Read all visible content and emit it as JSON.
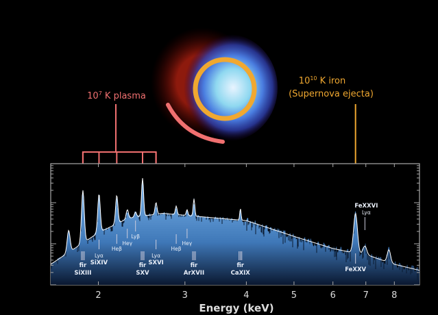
{
  "annotations": {
    "plasma_label_base": "10",
    "plasma_label_exp": "7",
    "plasma_label_rest": " K plasma",
    "iron_label_base": "10",
    "iron_label_exp": "10",
    "iron_label_rest": " K iron",
    "iron_label_line2": "(Supernova ejecta)",
    "colors": {
      "plasma": "#f07070",
      "iron": "#f0a830",
      "spectrum_fill": "#5fa0e0",
      "model_line": "#ffffff"
    }
  },
  "chart_data": {
    "type": "area",
    "title": "",
    "xlabel": "Energy (keV)",
    "ylabel": "",
    "x_scale": "log",
    "y_scale": "log",
    "xlim": [
      1.6,
      9.0
    ],
    "x_ticks": [
      "2",
      "3",
      "4",
      "5",
      "6",
      "7",
      "8"
    ],
    "grid": false,
    "continuum": {
      "energy_keV": [
        1.6,
        2.0,
        2.3,
        2.7,
        3.5,
        4.0,
        5.0,
        6.0,
        6.5,
        7.0,
        8.0,
        9.0
      ],
      "relative_intensity": [
        17,
        43,
        55,
        59,
        55,
        53,
        40,
        30,
        27,
        25,
        17,
        12
      ]
    },
    "lines": [
      {
        "energy_keV": 1.74,
        "peak": 45
      },
      {
        "energy_keV": 1.86,
        "peak": 78,
        "labels": [
          "fir",
          "SiXIII"
        ],
        "plasma_arrow": true
      },
      {
        "energy_keV": 2.006,
        "peak": 75,
        "labels": [
          "Lyα",
          "SiXIV"
        ],
        "plasma_arrow": true
      },
      {
        "energy_keV": 2.18,
        "peak": 74,
        "labels": [
          "Heβ"
        ],
        "plasma_arrow": true
      },
      {
        "energy_keV": 2.29,
        "peak": 62,
        "labels": [
          "Heγ"
        ]
      },
      {
        "energy_keV": 2.38,
        "peak": 60,
        "labels": [
          "Lyβ"
        ]
      },
      {
        "energy_keV": 2.46,
        "peak": 88,
        "labels": [
          "fir",
          "SXV"
        ],
        "plasma_arrow": true
      },
      {
        "energy_keV": 2.62,
        "peak": 68,
        "labels": [
          "Lyα",
          "SXVI"
        ],
        "plasma_arrow": true
      },
      {
        "energy_keV": 2.88,
        "peak": 65,
        "labels": [
          "Heβ"
        ]
      },
      {
        "energy_keV": 3.03,
        "peak": 62,
        "labels": [
          "Heγ"
        ]
      },
      {
        "energy_keV": 3.13,
        "peak": 71,
        "labels": [
          "fir",
          "ArXVII"
        ]
      },
      {
        "energy_keV": 3.89,
        "peak": 63,
        "labels": [
          "fir",
          "CaXIX"
        ]
      },
      {
        "energy_keV": 6.67,
        "peak": 59,
        "labels": [
          "FeXXV"
        ],
        "iron_arrow": true
      },
      {
        "energy_keV": 6.97,
        "peak": 32,
        "labels": [
          "FeXXVI",
          "Lyα"
        ]
      },
      {
        "energy_keV": 7.8,
        "peak": 29
      }
    ]
  }
}
